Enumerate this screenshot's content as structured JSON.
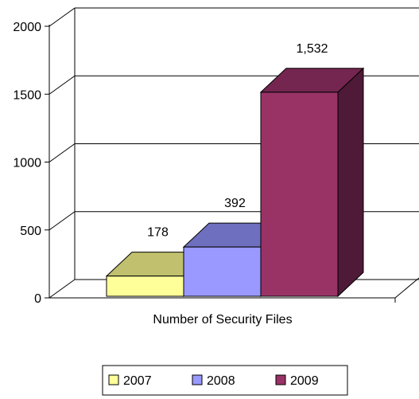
{
  "chart_data": {
    "type": "bar",
    "categories": [
      "Number of Security Files"
    ],
    "series": [
      {
        "name": "2007",
        "values": [
          178
        ],
        "label": "178",
        "color": "#FFFF99",
        "top_color": "#C0C06E",
        "side_color": "#9A9A4C"
      },
      {
        "name": "2008",
        "values": [
          392
        ],
        "label": "392",
        "color": "#9999FF",
        "top_color": "#6F6FC0",
        "side_color": "#4E4E9A"
      },
      {
        "name": "2009",
        "values": [
          1532
        ],
        "label": "1,532",
        "color": "#993366",
        "top_color": "#742650",
        "side_color": "#4F1A37"
      }
    ],
    "ylim": [
      0,
      2000
    ],
    "yticks": [
      "0",
      "500",
      "1000",
      "1500",
      "2000"
    ],
    "ytick_values": [
      0,
      500,
      1000,
      1500,
      2000
    ],
    "grid": true,
    "legend_position": "bottom",
    "xlabel": "Number of Security Files",
    "title": "",
    "ylabel": ""
  }
}
